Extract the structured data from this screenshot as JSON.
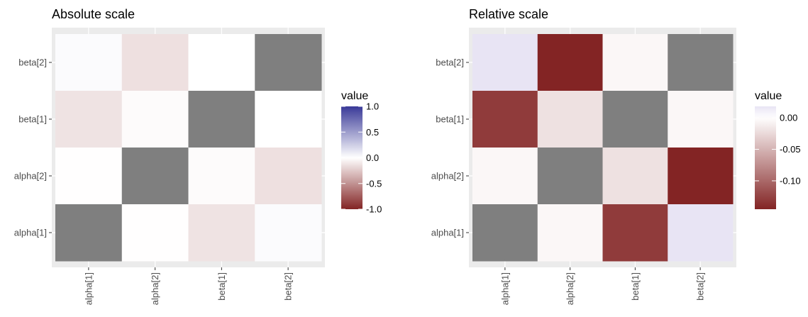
{
  "chart_data": [
    {
      "type": "heatmap",
      "title": "Absolute scale",
      "x_categories": [
        "alpha[1]",
        "alpha[2]",
        "beta[1]",
        "beta[2]"
      ],
      "y_categories": [
        "alpha[1]",
        "alpha[2]",
        "beta[1]",
        "beta[2]"
      ],
      "legend_title": "value",
      "scale": {
        "low": -1.0,
        "high": 1.0,
        "ticks": [
          "1.0",
          "0.5",
          "0.0",
          "-0.5",
          "-1.0"
        ],
        "tick_values": [
          1.0,
          0.5,
          0.0,
          -0.5,
          -1.0
        ]
      },
      "diagonal_color": "#7f7f7f",
      "low_color": "#832424",
      "mid_color": "#ffffff",
      "high_color": "#3a3a98",
      "matrix": [
        [
          null,
          -0.004,
          -0.13,
          0.02
        ],
        [
          -0.004,
          null,
          -0.02,
          -0.14
        ],
        [
          -0.13,
          -0.02,
          null,
          0.0
        ],
        [
          0.02,
          -0.14,
          0.0,
          null
        ]
      ]
    },
    {
      "type": "heatmap",
      "title": "Relative scale",
      "x_categories": [
        "alpha[1]",
        "alpha[2]",
        "beta[1]",
        "beta[2]"
      ],
      "y_categories": [
        "alpha[1]",
        "alpha[2]",
        "beta[1]",
        "beta[2]"
      ],
      "legend_title": "value",
      "scale": {
        "low": -0.145,
        "high": 0.018,
        "ticks": [
          "0.00",
          "-0.05",
          "-0.10"
        ],
        "tick_values": [
          0.0,
          -0.05,
          -0.1
        ]
      },
      "diagonal_color": "#7f7f7f",
      "low_color": "#832424",
      "mid_color": "#ffffff",
      "high_color": "#e8e4f4",
      "matrix": [
        [
          null,
          -0.005,
          -0.13,
          0.018
        ],
        [
          -0.005,
          null,
          -0.02,
          -0.145
        ],
        [
          -0.13,
          -0.02,
          null,
          -0.005
        ],
        [
          0.018,
          -0.145,
          -0.005,
          null
        ]
      ]
    }
  ]
}
